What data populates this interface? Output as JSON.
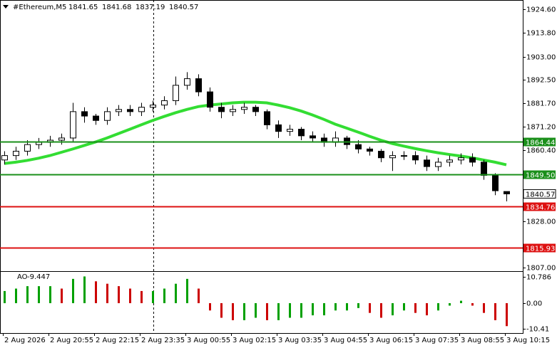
{
  "chart_data": [
    {
      "type": "candlestick",
      "title": "#Ethereum,M5",
      "categories": [
        "2 Aug 2026",
        null,
        null,
        null,
        "2 Aug 20:55",
        null,
        null,
        null,
        "2 Aug 22:15",
        null,
        null,
        null,
        "2 Aug 23:35",
        null,
        null,
        null,
        "3 Aug 00:55",
        null,
        null,
        null,
        "3 Aug 02:15",
        null,
        null,
        null,
        "3 Aug 03:35",
        null,
        null,
        null,
        "3 Aug 04:55",
        null,
        null,
        null,
        "3 Aug 06:15",
        null,
        null,
        null,
        "3 Aug 07:35",
        null,
        null,
        null,
        "3 Aug 08:55",
        null,
        null,
        null,
        "3 Aug 10:15"
      ],
      "open": [
        1856,
        1858,
        1860,
        1863,
        1864,
        1865,
        1866,
        1878,
        1876,
        1874,
        1878,
        1879,
        1878,
        1880,
        1881,
        1883,
        1890,
        1893,
        1887,
        1880,
        1878,
        1879,
        1880,
        1878,
        1872,
        1869,
        1870,
        1867,
        1866,
        1864,
        1866,
        1863,
        1861,
        1860,
        1857,
        1858,
        1858,
        1856,
        1853,
        1855,
        1856,
        1857,
        1855,
        1849,
        1841.65
      ],
      "high": [
        1860,
        1862,
        1865,
        1866,
        1867,
        1868,
        1882,
        1880,
        1877,
        1880,
        1881,
        1881,
        1882,
        1883,
        1885,
        1894,
        1896,
        1895,
        1889,
        1882,
        1881,
        1882,
        1881,
        1879,
        1874,
        1872,
        1871,
        1869,
        1868,
        1869,
        1867,
        1865,
        1862,
        1861,
        1860,
        1860,
        1860,
        1858,
        1857,
        1858,
        1859,
        1859,
        1856,
        1850,
        1841.68
      ],
      "low": [
        1854,
        1856,
        1858,
        1861,
        1862,
        1863,
        1864,
        1873,
        1872,
        1872,
        1876,
        1876,
        1876,
        1878,
        1879,
        1881,
        1888,
        1885,
        1878,
        1875,
        1876,
        1877,
        1876,
        1870,
        1866,
        1867,
        1865,
        1864,
        1862,
        1862,
        1861,
        1859,
        1858,
        1855,
        1851,
        1856,
        1854,
        1851,
        1851,
        1853,
        1854,
        1853,
        1847,
        1840,
        1837.19
      ],
      "close": [
        1858,
        1860,
        1863,
        1864,
        1865,
        1866,
        1878,
        1876,
        1874,
        1878,
        1879,
        1878,
        1880,
        1881,
        1883,
        1890,
        1893,
        1887,
        1880,
        1878,
        1879,
        1880,
        1878,
        1872,
        1869,
        1870,
        1867,
        1866,
        1864,
        1866,
        1863,
        1861,
        1860,
        1857,
        1858,
        1858,
        1856,
        1853,
        1855,
        1856,
        1857,
        1855,
        1849,
        1842,
        1840.57
      ],
      "up_color": "#ffffff",
      "down_color": "#000000",
      "ma": {
        "color": "#33dd33",
        "values": [
          1854.4,
          1855,
          1855.8,
          1856.8,
          1858,
          1859.5,
          1861,
          1862.6,
          1864.2,
          1866,
          1868,
          1870,
          1872,
          1874,
          1875.8,
          1877.5,
          1879,
          1880.3,
          1881,
          1881.5,
          1882,
          1882.3,
          1882.3,
          1882,
          1881,
          1879.8,
          1878.3,
          1876.5,
          1874.5,
          1872.3,
          1870.5,
          1868.7,
          1866.8,
          1865,
          1863.5,
          1862.3,
          1861.2,
          1860.2,
          1859.3,
          1858.5,
          1857.8,
          1857,
          1856,
          1855,
          1853.8
        ]
      },
      "levels": [
        {
          "value": 1864.44,
          "color": "#1a8f1a"
        },
        {
          "value": 1849.5,
          "label": "1849.50",
          "color": "#1a8f1a"
        },
        {
          "value": 1834.76,
          "color": "#dd1111"
        },
        {
          "value": 1815.93,
          "color": "#dd1111"
        }
      ],
      "ylim": [
        1805.4,
        1928.82
      ],
      "yticks": [
        {
          "value": 1924.6,
          "label": "1924.60"
        },
        {
          "value": 1913.8,
          "label": "1913.80"
        },
        {
          "value": 1903,
          "label": "1903.00"
        },
        {
          "value": 1892.5,
          "label": "1892.50"
        },
        {
          "value": 1881.7,
          "label": "1881.70"
        },
        {
          "value": 1871.2,
          "label": "1871.20"
        },
        {
          "value": 1860.4,
          "label": "1860.40"
        },
        {
          "value": 1828,
          "label": "1828.00"
        },
        {
          "value": 1807,
          "label": "1807.00"
        }
      ]
    },
    {
      "type": "bar",
      "title": "AO",
      "up_color": "#00a000",
      "down_color": "#cc0000",
      "values": [
        5,
        6,
        7,
        7,
        7,
        6,
        10,
        11,
        9,
        8,
        7,
        6,
        5,
        5,
        6,
        8,
        10,
        6,
        -3,
        -6,
        -7,
        -7,
        -6,
        -7,
        -7,
        -6,
        -6,
        -5,
        -5,
        -3,
        -3,
        -2,
        -4,
        -6,
        -5,
        -3,
        -4,
        -5,
        -3,
        -1,
        1,
        -1,
        -4,
        -7,
        -9.447
      ],
      "ylim": [
        -12.3,
        12.6
      ],
      "yticks": [
        10.786,
        {
          "value": 0,
          "label": "0.00"
        },
        -10.41
      ]
    }
  ]
}
